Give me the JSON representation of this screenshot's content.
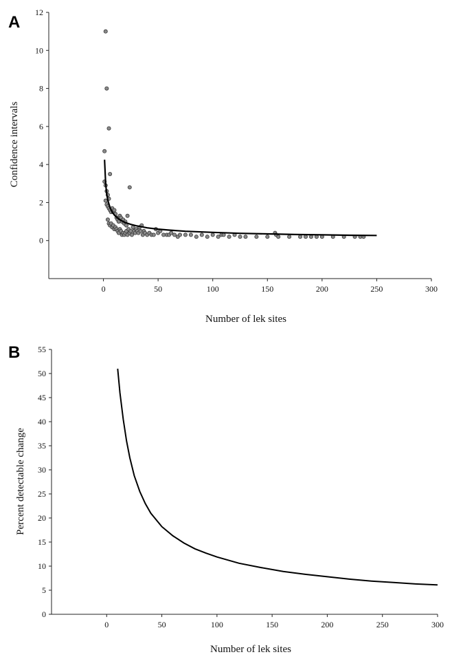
{
  "chart_data": [
    {
      "panel_label": "A",
      "type": "scatter",
      "xlabel": "Number of lek sites",
      "ylabel": "Confidence intervals",
      "xlim": [
        -50,
        300
      ],
      "ylim": [
        -2,
        12
      ],
      "xticks": [
        0,
        50,
        100,
        150,
        200,
        250,
        300
      ],
      "yticks": [
        0,
        2,
        4,
        6,
        8,
        10,
        12
      ],
      "grid": false,
      "series": [
        {
          "type": "scatter",
          "points": [
            [
              1,
              4.7
            ],
            [
              2,
              11.0
            ],
            [
              3,
              8.0
            ],
            [
              5,
              5.9
            ],
            [
              6,
              3.5
            ],
            [
              1,
              3.1
            ],
            [
              2,
              2.9
            ],
            [
              3,
              2.6
            ],
            [
              4,
              2.4
            ],
            [
              5,
              2.2
            ],
            [
              2,
              2.1
            ],
            [
              3,
              1.9
            ],
            [
              4,
              1.8
            ],
            [
              5,
              1.7
            ],
            [
              6,
              1.6
            ],
            [
              7,
              1.5
            ],
            [
              8,
              1.7
            ],
            [
              9,
              1.5
            ],
            [
              10,
              1.6
            ],
            [
              11,
              1.4
            ],
            [
              12,
              1.2
            ],
            [
              13,
              1.1
            ],
            [
              14,
              1.0
            ],
            [
              15,
              1.3
            ],
            [
              16,
              1.2
            ],
            [
              17,
              1.0
            ],
            [
              18,
              1.1
            ],
            [
              19,
              0.9
            ],
            [
              20,
              1.0
            ],
            [
              21,
              0.8
            ],
            [
              22,
              1.3
            ],
            [
              24,
              2.8
            ],
            [
              4,
              1.1
            ],
            [
              5,
              0.9
            ],
            [
              6,
              0.8
            ],
            [
              7,
              0.9
            ],
            [
              8,
              0.7
            ],
            [
              9,
              0.8
            ],
            [
              10,
              0.6
            ],
            [
              11,
              0.7
            ],
            [
              12,
              0.6
            ],
            [
              13,
              0.5
            ],
            [
              14,
              0.4
            ],
            [
              15,
              0.6
            ],
            [
              16,
              0.5
            ],
            [
              17,
              0.3
            ],
            [
              18,
              0.4
            ],
            [
              19,
              0.3
            ],
            [
              20,
              0.4
            ],
            [
              21,
              0.5
            ],
            [
              22,
              0.3
            ],
            [
              23,
              0.6
            ],
            [
              24,
              0.4
            ],
            [
              25,
              0.5
            ],
            [
              26,
              0.3
            ],
            [
              27,
              0.7
            ],
            [
              28,
              0.5
            ],
            [
              29,
              0.4
            ],
            [
              30,
              0.6
            ],
            [
              31,
              0.5
            ],
            [
              32,
              0.4
            ],
            [
              33,
              0.7
            ],
            [
              34,
              0.5
            ],
            [
              35,
              0.8
            ],
            [
              36,
              0.3
            ],
            [
              37,
              0.5
            ],
            [
              38,
              0.4
            ],
            [
              40,
              0.3
            ],
            [
              42,
              0.4
            ],
            [
              44,
              0.3
            ],
            [
              46,
              0.3
            ],
            [
              48,
              0.6
            ],
            [
              50,
              0.4
            ],
            [
              52,
              0.5
            ],
            [
              55,
              0.3
            ],
            [
              58,
              0.3
            ],
            [
              60,
              0.3
            ],
            [
              62,
              0.4
            ],
            [
              65,
              0.3
            ],
            [
              68,
              0.2
            ],
            [
              70,
              0.3
            ],
            [
              75,
              0.3
            ],
            [
              80,
              0.3
            ],
            [
              85,
              0.2
            ],
            [
              90,
              0.3
            ],
            [
              95,
              0.2
            ],
            [
              100,
              0.3
            ],
            [
              105,
              0.2
            ],
            [
              108,
              0.3
            ],
            [
              110,
              0.3
            ],
            [
              115,
              0.2
            ],
            [
              120,
              0.3
            ],
            [
              125,
              0.2
            ],
            [
              130,
              0.2
            ],
            [
              140,
              0.2
            ],
            [
              150,
              0.2
            ],
            [
              157,
              0.4
            ],
            [
              158,
              0.3
            ],
            [
              160,
              0.2
            ],
            [
              170,
              0.2
            ],
            [
              180,
              0.2
            ],
            [
              185,
              0.2
            ],
            [
              190,
              0.2
            ],
            [
              195,
              0.2
            ],
            [
              200,
              0.2
            ],
            [
              210,
              0.2
            ],
            [
              220,
              0.2
            ],
            [
              230,
              0.2
            ],
            [
              235,
              0.2
            ],
            [
              238,
              0.2
            ]
          ]
        },
        {
          "type": "line",
          "points": [
            [
              1,
              4.25
            ],
            [
              2,
              3.0
            ],
            [
              3,
              2.45
            ],
            [
              4,
              2.13
            ],
            [
              6,
              1.74
            ],
            [
              8,
              1.5
            ],
            [
              10,
              1.34
            ],
            [
              13,
              1.18
            ],
            [
              16,
              1.06
            ],
            [
              20,
              0.95
            ],
            [
              25,
              0.85
            ],
            [
              30,
              0.78
            ],
            [
              40,
              0.67
            ],
            [
              50,
              0.6
            ],
            [
              60,
              0.55
            ],
            [
              75,
              0.49
            ],
            [
              100,
              0.43
            ],
            [
              125,
              0.38
            ],
            [
              150,
              0.35
            ],
            [
              175,
              0.32
            ],
            [
              200,
              0.3
            ],
            [
              225,
              0.28
            ],
            [
              250,
              0.27
            ]
          ]
        }
      ]
    },
    {
      "panel_label": "B",
      "type": "line",
      "xlabel": "Number of lek sites",
      "ylabel": "Percent detectable change",
      "xlim": [
        -50,
        300
      ],
      "ylim": [
        0,
        55
      ],
      "xticks": [
        0,
        50,
        100,
        150,
        200,
        250,
        300
      ],
      "yticks": [
        0,
        5,
        10,
        15,
        20,
        25,
        30,
        35,
        40,
        45,
        50,
        55
      ],
      "grid": false,
      "series": [
        {
          "type": "line",
          "points": [
            [
              10,
              51.0
            ],
            [
              12,
              46.0
            ],
            [
              15,
              40.5
            ],
            [
              18,
              36.0
            ],
            [
              21,
              32.5
            ],
            [
              25,
              28.8
            ],
            [
              30,
              25.5
            ],
            [
              35,
              23.0
            ],
            [
              40,
              21.0
            ],
            [
              50,
              18.2
            ],
            [
              60,
              16.3
            ],
            [
              70,
              14.8
            ],
            [
              80,
              13.6
            ],
            [
              90,
              12.7
            ],
            [
              100,
              11.9
            ],
            [
              120,
              10.6
            ],
            [
              140,
              9.7
            ],
            [
              160,
              8.9
            ],
            [
              180,
              8.3
            ],
            [
              200,
              7.8
            ],
            [
              220,
              7.3
            ],
            [
              240,
              6.9
            ],
            [
              260,
              6.6
            ],
            [
              280,
              6.3
            ],
            [
              300,
              6.1
            ]
          ]
        }
      ]
    }
  ]
}
